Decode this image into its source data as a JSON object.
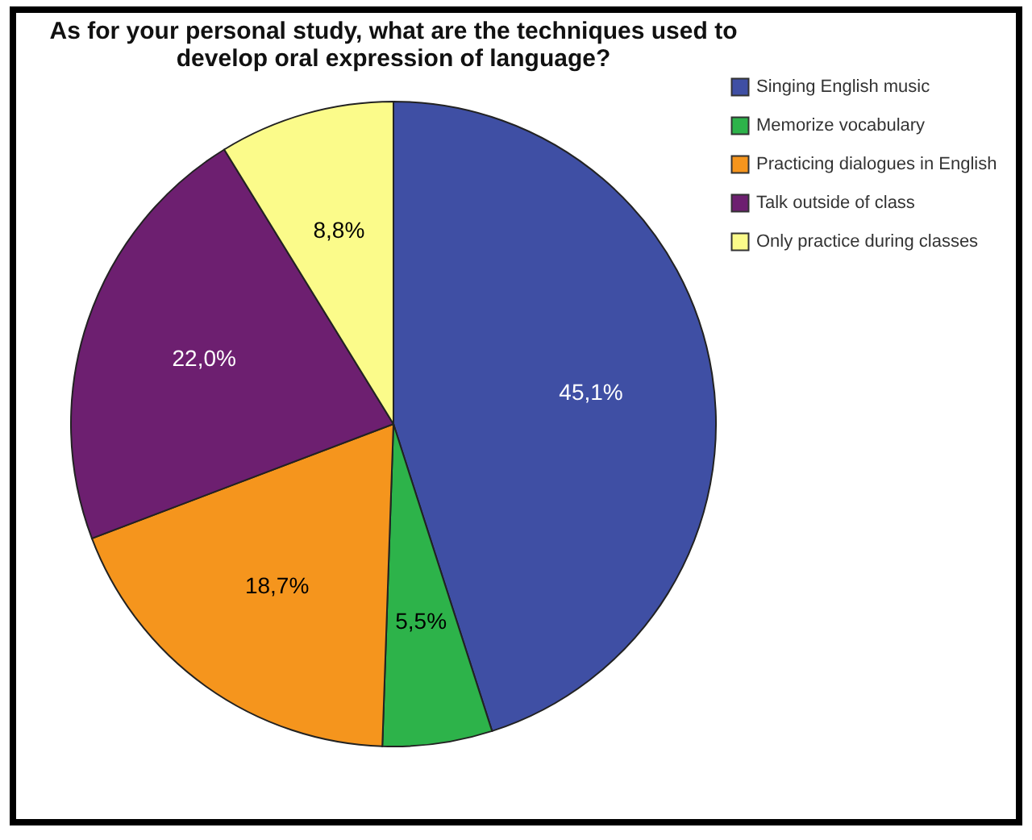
{
  "chart_data": {
    "type": "pie",
    "title": "As for your personal study, what are the techniques used to develop oral expression of language?",
    "categories": [
      "Singing English music",
      "Memorize vocabulary",
      "Practicing dialogues in English",
      "Talk outside of class",
      "Only practice during classes"
    ],
    "values": [
      45.1,
      5.5,
      18.7,
      22.0,
      8.8
    ],
    "value_labels": [
      "45,1%",
      "5,5%",
      "18,7%",
      "22,0%",
      "8,8%"
    ],
    "colors": [
      "#3f4fa4",
      "#2db34a",
      "#f5951d",
      "#6d1f70",
      "#fbfb8a"
    ],
    "legend": "top right"
  }
}
